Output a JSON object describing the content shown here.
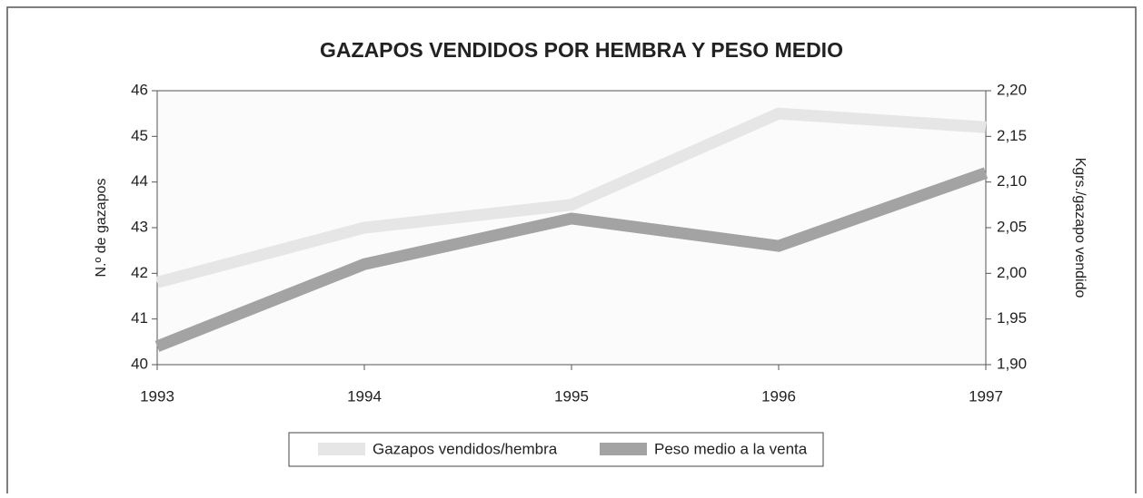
{
  "chart_data": {
    "type": "line",
    "title": "GAZAPOS VENDIDOS POR HEMBRA Y PESO MEDIO",
    "y_label": "N.º de gazapos",
    "y2_label": "Kgrs./gazapo vendido",
    "categories": [
      "1993",
      "1994",
      "1995",
      "1996",
      "1997"
    ],
    "series": [
      {
        "name": "Gazapos vendidos/hembra",
        "color": "#e6e6e6",
        "values": [
          41.8,
          43.0,
          43.5,
          45.5,
          45.2
        ]
      },
      {
        "name": "Peso medio a la venta",
        "color": "#a3a3a3",
        "axis": "y2",
        "values": [
          1.92,
          2.01,
          2.06,
          2.03,
          2.11
        ]
      }
    ],
    "ylim": [
      40,
      46
    ],
    "yticks": [
      40,
      41,
      42,
      43,
      44,
      45,
      46
    ],
    "y2lim": [
      1.9,
      2.2
    ],
    "y2ticks": [
      {
        "value": 1.9,
        "label": "1,90"
      },
      {
        "value": 1.95,
        "label": "1,95"
      },
      {
        "value": 2.0,
        "label": "2,00"
      },
      {
        "value": 2.05,
        "label": "2,05"
      },
      {
        "value": 2.1,
        "label": "2,10"
      },
      {
        "value": 2.15,
        "label": "2,15"
      },
      {
        "value": 2.2,
        "label": "2,20"
      }
    ],
    "legend": "bottom"
  }
}
